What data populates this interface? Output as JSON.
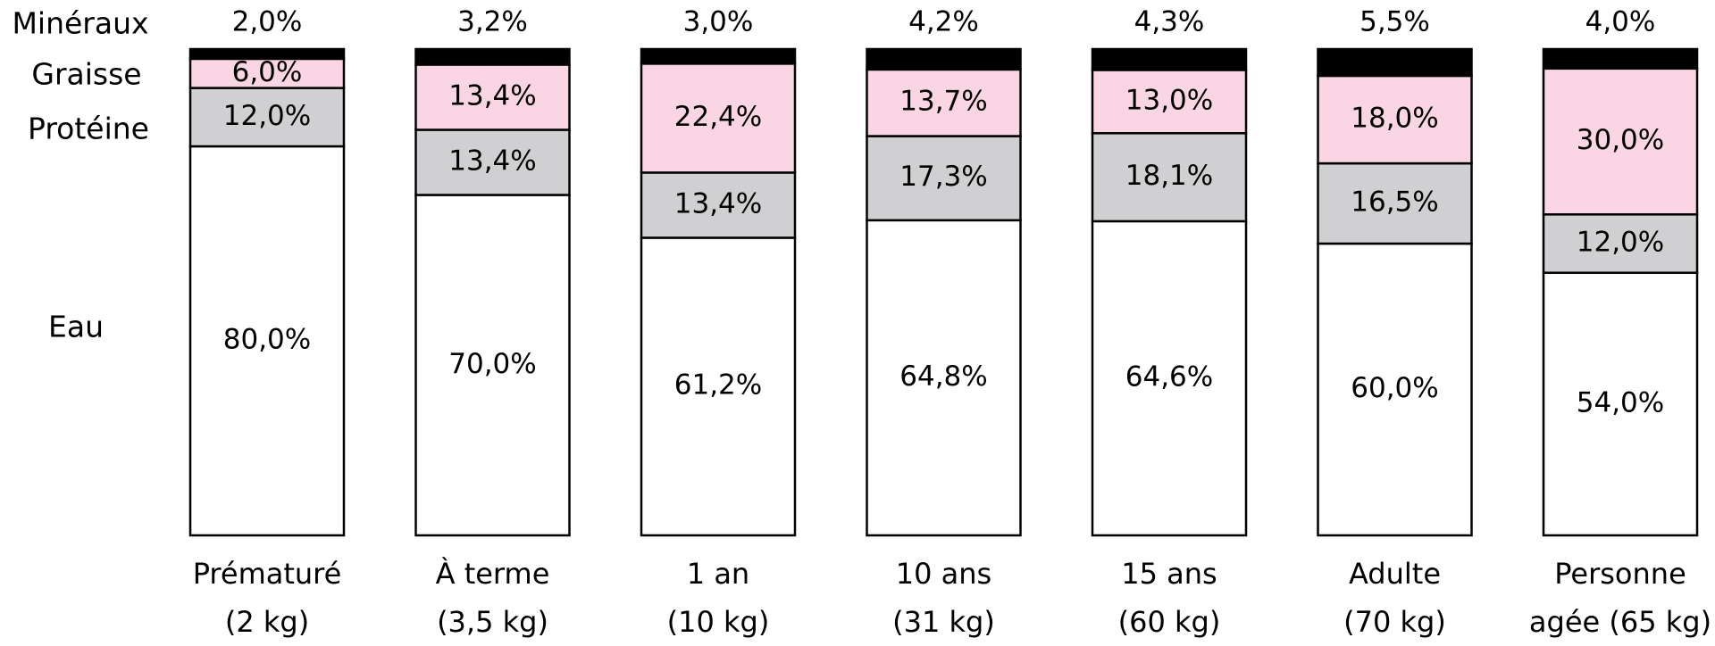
{
  "chart_data": {
    "type": "bar",
    "stacked": true,
    "normalized": true,
    "unit": "%",
    "categories": [
      [
        "Prématuré",
        "(2 kg)"
      ],
      [
        "À terme",
        "(3,5 kg)"
      ],
      [
        "1 an",
        "(10 kg)"
      ],
      [
        "10 ans",
        "(31 kg)"
      ],
      [
        "15 ans",
        "(60 kg)"
      ],
      [
        "Adulte",
        "(70 kg)"
      ],
      [
        "Personne",
        "agée (65 kg)"
      ]
    ],
    "series": [
      {
        "name": "Eau",
        "color": "#ffffff",
        "values": [
          80.0,
          70.0,
          61.2,
          64.8,
          64.6,
          60.0,
          54.0
        ],
        "labels": [
          "80,0%",
          "70,0%",
          "61,2%",
          "64,8%",
          "64,6%",
          "60,0%",
          "54,0%"
        ]
      },
      {
        "name": "Protéine",
        "color": "#d0d0d2",
        "values": [
          12.0,
          13.4,
          13.4,
          17.3,
          18.1,
          16.5,
          12.0
        ],
        "labels": [
          "12,0%",
          "13,4%",
          "13,4%",
          "17,3%",
          "18,1%",
          "16,5%",
          "12,0%"
        ]
      },
      {
        "name": "Graisse",
        "color": "#fad6e4",
        "values": [
          6.0,
          13.4,
          22.4,
          13.7,
          13.0,
          18.0,
          30.0
        ],
        "labels": [
          "6,0%",
          "13,4%",
          "22,4%",
          "13,7%",
          "13,0%",
          "18,0%",
          "30,0%"
        ]
      },
      {
        "name": "Minéraux",
        "color": "#000000",
        "values": [
          2.0,
          3.2,
          3.0,
          4.2,
          4.3,
          5.5,
          4.0
        ],
        "labels": [
          "2,0%",
          "3,2%",
          "3,0%",
          "4,2%",
          "4,3%",
          "5,5%",
          "4,0%"
        ]
      }
    ],
    "legend_placement": "left",
    "grid": false
  }
}
